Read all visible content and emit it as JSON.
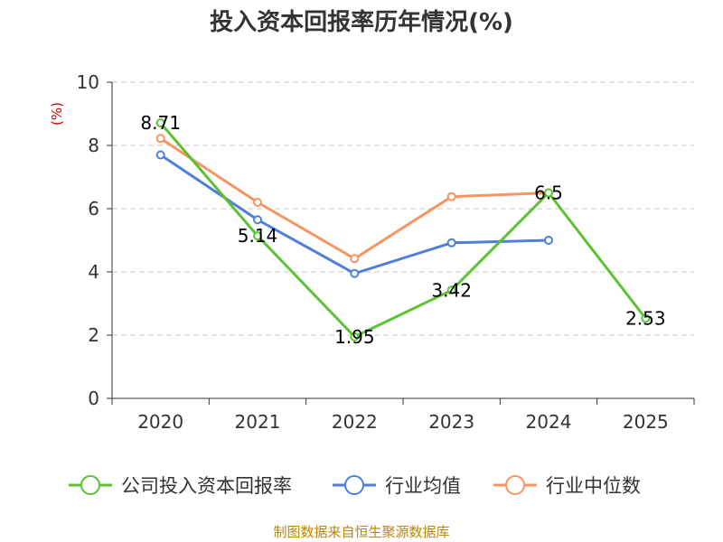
{
  "chart_data": {
    "type": "line",
    "title": "投入资本回报率历年情况(%)",
    "ylabel": "(%)",
    "categories": [
      "2020",
      "2021",
      "2022",
      "2023",
      "2024",
      "2025"
    ],
    "ylim": [
      0,
      10
    ],
    "yticks": [
      "0",
      "2",
      "4",
      "6",
      "8",
      "10"
    ],
    "grid": true,
    "legend_position": "bottom",
    "series": [
      {
        "name": "公司投入资本回报率",
        "color": "#5cc232",
        "values": [
          8.71,
          5.14,
          1.95,
          3.42,
          6.5,
          2.53
        ],
        "labels": [
          "8.71",
          "5.14",
          "1.95",
          "3.42",
          "6.5",
          "2.53"
        ]
      },
      {
        "name": "行业均值",
        "color": "#4f7fd8",
        "values": [
          7.7,
          5.65,
          3.95,
          4.92,
          5.0,
          null
        ]
      },
      {
        "name": "行业中位数",
        "color": "#f79560",
        "values": [
          8.22,
          6.2,
          4.42,
          6.38,
          6.5,
          null
        ]
      }
    ],
    "source": "制图数据来自恒生聚源数据库"
  }
}
